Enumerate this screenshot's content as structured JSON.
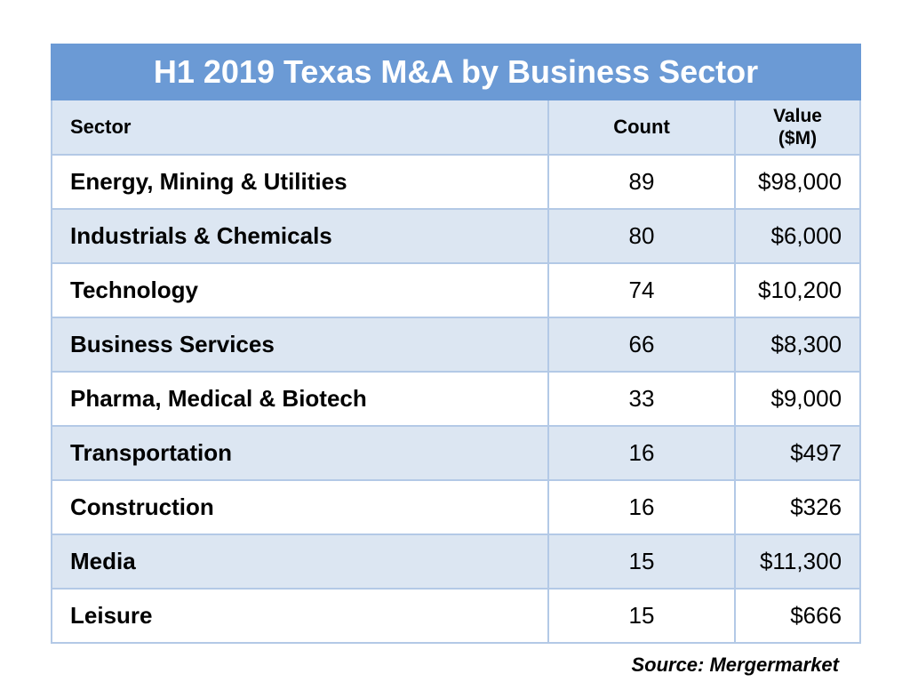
{
  "chart_data": {
    "type": "table",
    "title": "H1 2019 Texas M&A by Business Sector",
    "columns": {
      "sector": "Sector",
      "count": "Count",
      "value_line1": "Value",
      "value_line2": "($M)"
    },
    "rows": [
      {
        "sector": "Energy, Mining & Utilities",
        "count": 89,
        "value": "$98,000"
      },
      {
        "sector": "Industrials & Chemicals",
        "count": 80,
        "value": "$6,000"
      },
      {
        "sector": "Technology",
        "count": 74,
        "value": "$10,200"
      },
      {
        "sector": "Business Services",
        "count": 66,
        "value": "$8,300"
      },
      {
        "sector": "Pharma, Medical & Biotech",
        "count": 33,
        "value": "$9,000"
      },
      {
        "sector": "Transportation",
        "count": 16,
        "value": "$497"
      },
      {
        "sector": "Construction",
        "count": 16,
        "value": "$326"
      },
      {
        "sector": "Media",
        "count": 15,
        "value": "$11,300"
      },
      {
        "sector": "Leisure",
        "count": 15,
        "value": "$666"
      }
    ],
    "source": "Source: Mergermarket"
  },
  "colors": {
    "title_background": "#6b9ad5",
    "header_background": "#dbe6f3",
    "band_background": "#dce6f2",
    "border": "#b3c9e6"
  }
}
